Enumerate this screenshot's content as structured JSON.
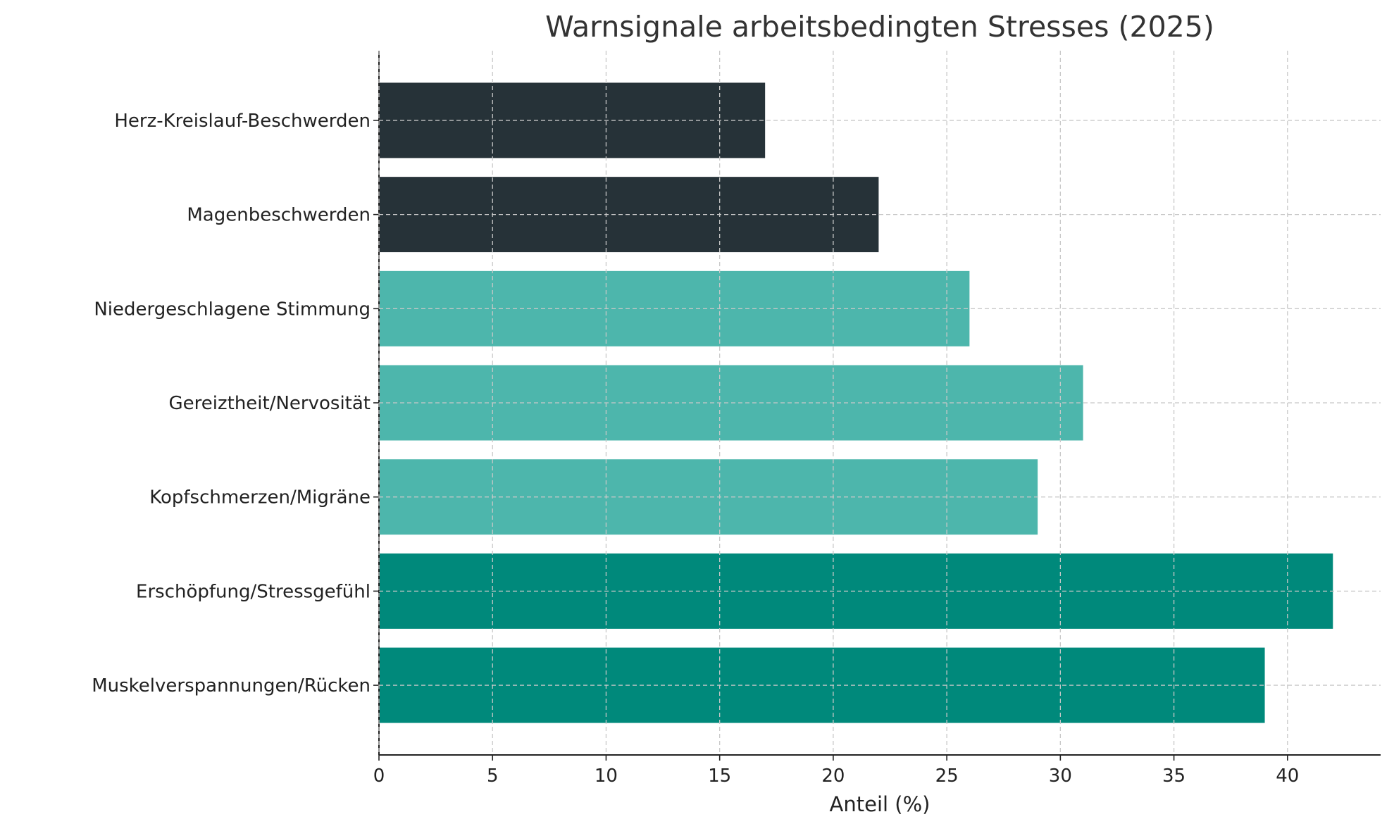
{
  "chart_data": {
    "type": "bar",
    "orientation": "horizontal",
    "title": "Warnsignale arbeitsbedingten Stresses (2025)",
    "xlabel": "Anteil (%)",
    "ylabel": "",
    "categories": [
      "Muskelverspannungen/Rücken",
      "Erschöpfung/Stressgefühl",
      "Kopfschmerzen/Migräne",
      "Gereiztheit/Nervosität",
      "Niedergeschlagene Stimmung",
      "Magenbeschwerden",
      "Herz-Kreislauf-Beschwerden"
    ],
    "values": [
      39,
      42,
      29,
      31,
      26,
      22,
      17
    ],
    "bar_colors": [
      "#00897B",
      "#00897B",
      "#4DB6AC",
      "#4DB6AC",
      "#4DB6AC",
      "#263238",
      "#263238"
    ],
    "xlim": [
      0,
      44.1
    ],
    "xticks": [
      "0",
      "5",
      "10",
      "15",
      "20",
      "25",
      "30",
      "35",
      "40"
    ],
    "grid": true
  }
}
